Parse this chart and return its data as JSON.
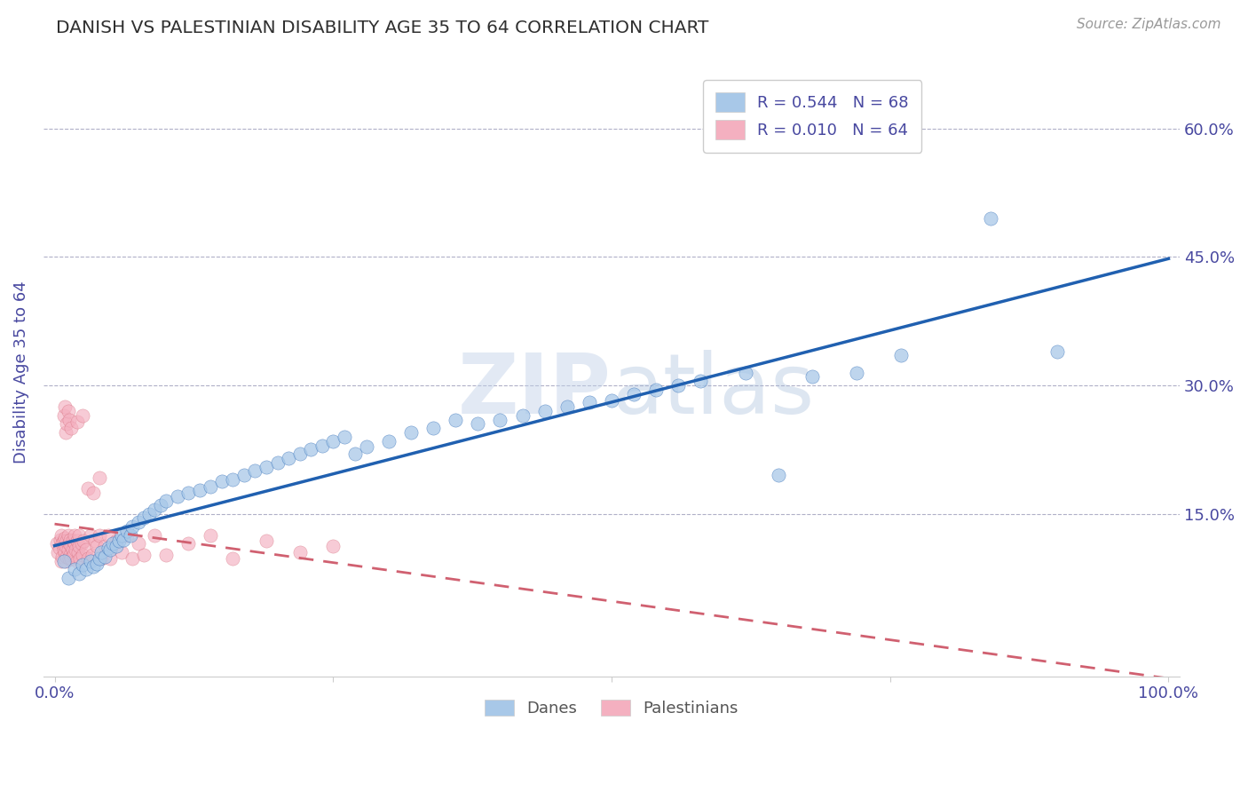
{
  "title": "DANISH VS PALESTINIAN DISABILITY AGE 35 TO 64 CORRELATION CHART",
  "source_text": "Source: ZipAtlas.com",
  "ylabel": "Disability Age 35 to 64",
  "watermark": "ZIPatlas",
  "xlim": [
    -0.01,
    1.01
  ],
  "ylim": [
    -0.04,
    0.67
  ],
  "yticks": [
    0.15,
    0.3,
    0.45,
    0.6
  ],
  "ytick_labels": [
    "15.0%",
    "30.0%",
    "45.0%",
    "60.0%"
  ],
  "danes_R": 0.544,
  "danes_N": 68,
  "palestinians_R": 0.01,
  "palestinians_N": 64,
  "danes_color": "#a8c8e8",
  "palestinians_color": "#f4b0c0",
  "danes_line_color": "#2060b0",
  "palestinians_line_color": "#d06070",
  "background_color": "#ffffff",
  "grid_color": "#b0b0c8",
  "title_color": "#303030",
  "axis_label_color": "#4848a0",
  "tick_label_color": "#4848a0",
  "legend_label_danes": "Danes",
  "legend_label_palestinians": "Palestinians",
  "danes_line_start_y": 0.075,
  "danes_line_end_y": 0.455,
  "palestinians_line_start_y": 0.135,
  "palestinians_line_end_y": 0.14,
  "danes_x": [
    0.008,
    0.012,
    0.018,
    0.022,
    0.025,
    0.028,
    0.032,
    0.035,
    0.038,
    0.04,
    0.042,
    0.045,
    0.048,
    0.05,
    0.052,
    0.055,
    0.058,
    0.06,
    0.062,
    0.065,
    0.068,
    0.07,
    0.075,
    0.08,
    0.085,
    0.09,
    0.095,
    0.1,
    0.11,
    0.12,
    0.13,
    0.14,
    0.15,
    0.16,
    0.17,
    0.18,
    0.19,
    0.2,
    0.21,
    0.22,
    0.23,
    0.24,
    0.25,
    0.26,
    0.27,
    0.28,
    0.3,
    0.32,
    0.34,
    0.36,
    0.38,
    0.4,
    0.42,
    0.44,
    0.46,
    0.48,
    0.5,
    0.52,
    0.54,
    0.56,
    0.58,
    0.62,
    0.65,
    0.68,
    0.72,
    0.76,
    0.84,
    0.9
  ],
  "danes_y": [
    0.095,
    0.075,
    0.085,
    0.08,
    0.09,
    0.085,
    0.095,
    0.088,
    0.092,
    0.098,
    0.105,
    0.1,
    0.11,
    0.108,
    0.115,
    0.112,
    0.118,
    0.125,
    0.12,
    0.13,
    0.125,
    0.135,
    0.14,
    0.145,
    0.15,
    0.155,
    0.16,
    0.165,
    0.17,
    0.175,
    0.178,
    0.182,
    0.188,
    0.19,
    0.195,
    0.2,
    0.205,
    0.21,
    0.215,
    0.22,
    0.225,
    0.23,
    0.235,
    0.24,
    0.22,
    0.228,
    0.235,
    0.245,
    0.25,
    0.26,
    0.255,
    0.26,
    0.265,
    0.27,
    0.275,
    0.28,
    0.282,
    0.29,
    0.295,
    0.3,
    0.305,
    0.315,
    0.195,
    0.31,
    0.315,
    0.335,
    0.495,
    0.34
  ],
  "palestinians_x": [
    0.002,
    0.003,
    0.004,
    0.005,
    0.006,
    0.006,
    0.007,
    0.007,
    0.008,
    0.008,
    0.009,
    0.009,
    0.01,
    0.01,
    0.011,
    0.011,
    0.012,
    0.012,
    0.013,
    0.013,
    0.014,
    0.014,
    0.015,
    0.015,
    0.016,
    0.016,
    0.017,
    0.018,
    0.018,
    0.019,
    0.02,
    0.02,
    0.021,
    0.022,
    0.022,
    0.023,
    0.024,
    0.025,
    0.026,
    0.028,
    0.03,
    0.032,
    0.034,
    0.036,
    0.038,
    0.04,
    0.042,
    0.045,
    0.048,
    0.05,
    0.055,
    0.06,
    0.065,
    0.07,
    0.075,
    0.08,
    0.09,
    0.1,
    0.12,
    0.14,
    0.16,
    0.19,
    0.22,
    0.25
  ],
  "palestinians_y": [
    0.115,
    0.105,
    0.11,
    0.12,
    0.095,
    0.125,
    0.1,
    0.115,
    0.108,
    0.118,
    0.105,
    0.122,
    0.095,
    0.112,
    0.1,
    0.118,
    0.108,
    0.125,
    0.098,
    0.115,
    0.102,
    0.12,
    0.098,
    0.112,
    0.108,
    0.118,
    0.102,
    0.115,
    0.125,
    0.108,
    0.095,
    0.118,
    0.105,
    0.112,
    0.125,
    0.098,
    0.115,
    0.102,
    0.118,
    0.108,
    0.098,
    0.125,
    0.102,
    0.118,
    0.112,
    0.125,
    0.098,
    0.112,
    0.125,
    0.098,
    0.118,
    0.105,
    0.125,
    0.098,
    0.115,
    0.102,
    0.125,
    0.102,
    0.115,
    0.125,
    0.098,
    0.118,
    0.105,
    0.112
  ],
  "palestinians_outliers_x": [
    0.008,
    0.009,
    0.01,
    0.011,
    0.012,
    0.013,
    0.015,
    0.02,
    0.025,
    0.03,
    0.035,
    0.04
  ],
  "palestinians_outliers_y": [
    0.265,
    0.275,
    0.245,
    0.255,
    0.27,
    0.26,
    0.25,
    0.258,
    0.265,
    0.18,
    0.175,
    0.192
  ]
}
